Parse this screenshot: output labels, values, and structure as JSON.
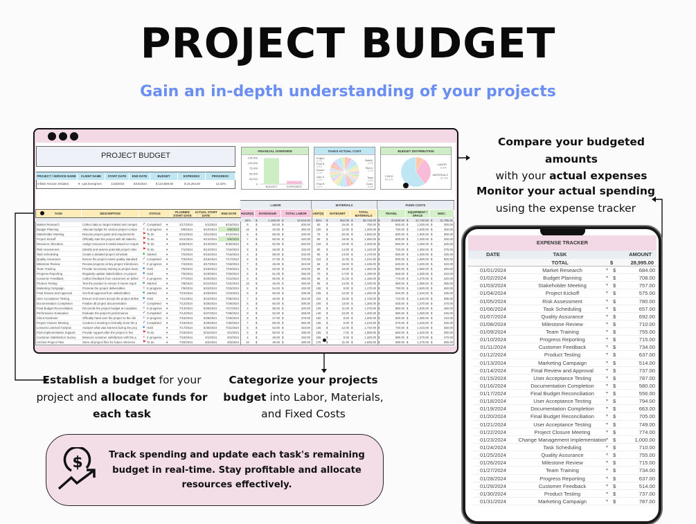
{
  "header": {
    "title": "PROJECT BUDGET",
    "subtitle": "Gain an in-depth understanding of your projects"
  },
  "callouts": {
    "compare": {
      "line1": "Compare your budgeted amounts",
      "line2_pre": "with your ",
      "line2_bold": "actual expenses"
    },
    "monitor": {
      "line1": "Monitor your actual spending",
      "line2": "using the expense tracker"
    },
    "establish": {
      "b1": "Establish a budget",
      "t1": " for your",
      "t2": "project and ",
      "b2": "allocate funds for",
      "b3": "each task"
    },
    "categorize": {
      "b1": "Categorize your projects",
      "b2": "budget",
      "t2": " into Labor, Materials,",
      "t3": "and Fixed Costs"
    },
    "bottom": "Track spending and update each task's remaining budget in real-time. Stay profitable and allocate resources effectively."
  },
  "sheet": {
    "title": "PROJECT BUDGET",
    "info_headers": [
      "PROJECT / SERVICE NAME",
      "CLIENT NAME",
      "START DATE",
      "END DATE",
      "BUDGET",
      "EXPENSES",
      "PROGRESS"
    ],
    "info_values": [
      "Infinite Horizon Initiative",
      "Lyla Evergreen",
      "1/18/2024",
      "5/10/2024",
      "$   123,859.00",
      "$   15,263.00",
      "12.32%"
    ],
    "groups": [
      "LABOR",
      "MATERIALS",
      "FIXED COSTS"
    ],
    "columns": [
      "TASK",
      "DESCRIPTION",
      "STATUS",
      "PLANNED START DATE",
      "ACTUAL START DATE",
      "END DATE",
      "HOUR(S)",
      "RATE/HOUR",
      "TOTAL LABOR",
      "UNIT(S)",
      "RATE/UNIT",
      "TOTAL MATERIALS",
      "TRAVEL",
      "EQUIPMENT / SPACE",
      "MISC."
    ],
    "totals": {
      "hours": "35%",
      "rate": "1,156.00",
      "labor": "10,619.00",
      "units": "35%",
      "mrate": "362.00",
      "materials": "38,745.00",
      "travel": "20,930.00",
      "equipment": "41,740.00",
      "misc": "11,795.00"
    },
    "currency": "$",
    "status_colors": {
      "Completed": "#5b3fc4",
      "In progress": "#e7a3d9",
      "To do": "#e22424",
      "Started": "#2fb34b",
      "Hold": "#2f8fe0"
    },
    "rows": [
      [
        "Market Research",
        "Collect data on target market and compet",
        "Completed",
        "1/17/2024",
        "5/1/2024",
        "5/15/2024",
        "8",
        "50.00",
        "400.00",
        "50",
        "15.00",
        "750.00",
        "500.00",
        "1,200.00",
        "300.00"
      ],
      [
        "Budget Planning",
        "Allocate budget for various project compo",
        "In progress",
        "5/8/2024",
        "5/10/2024",
        "6/8/2024",
        "10",
        "45.00",
        "450.00",
        "100",
        "12.00",
        "1,200.00",
        "750.00",
        "1,500.00",
        "450.00"
      ],
      [
        "Stakeholder Meeting",
        "Discuss project goals and requirements",
        "To do",
        "5/21/2024",
        "5/11/2024",
        "6/10/2024",
        "6",
        "55.00",
        "330.00",
        "75",
        "20.00",
        "1,500.00",
        "600.00",
        "1,300.00",
        "350.00"
      ],
      [
        "Project Kickoff",
        "Officially start the project with all stakeho",
        "To do",
        "6/11/2024",
        "5/12/2024",
        "6/8/2024",
        "7",
        "60.00",
        "420.00",
        "60",
        "18.00",
        "1,080.00",
        "800.00",
        "1,400.00",
        "400.00"
      ],
      [
        "Resource Allocation",
        "Assign resources to tasks based on require",
        "To do",
        "6/26/2024",
        "5/13/2024",
        "6/30/2024",
        "5",
        "52.00",
        "260.00",
        "120",
        "10.00",
        "1,200.00",
        "550.00",
        "1,250.00",
        "325.00"
      ],
      [
        "Risk Assessment",
        "Identify and assess potential project risks",
        "To do",
        "7/1/2024",
        "5/14/2024",
        "7/15/2024",
        "9",
        "48.00",
        "432.00",
        "80",
        "14.00",
        "1,120.00",
        "700.00",
        "1,350.00",
        "375.00"
      ],
      [
        "Task Scheduling",
        "Create a detailed project schedule",
        "Started",
        "7/2/2024",
        "5/15/2024",
        "7/16/2024",
        "4",
        "58.00",
        "232.00",
        "90",
        "13.00",
        "1,170.00",
        "650.00",
        "1,450.00",
        "425.00"
      ],
      [
        "Quality Assurance",
        "Ensure the project meets quality standard",
        "Completed",
        "7/3/2024",
        "5/16/2024",
        "7/17/2024",
        "8",
        "47.00",
        "376.00",
        "110",
        "11.00",
        "1,210.00",
        "900.00",
        "1,600.00",
        "500.00"
      ],
      [
        "Milestone Review",
        "Review progress at key project milestones",
        "In progress",
        "7/4/2024",
        "5/17/2024",
        "7/18/2024",
        "7",
        "49.00",
        "343.00",
        "65",
        "19.00",
        "1,235.00",
        "620.00",
        "1,320.00",
        "340.00"
      ],
      [
        "Team Training",
        "Provide necessary training to project team",
        "Hold",
        "7/5/2024",
        "5/18/2024",
        "7/19/2024",
        "6",
        "53.00",
        "318.00",
        "85",
        "16.00",
        "1,360.00",
        "880.00",
        "1,550.00",
        "460.00"
      ],
      [
        "Progress Reporting",
        "Regularly update stakeholders on project",
        "Hold",
        "7/6/2024",
        "5/19/2024",
        "7/20/2024",
        "5",
        "51.00",
        "255.00",
        "70",
        "17.00",
        "1,190.00",
        "560.00",
        "1,280.00",
        "310.00"
      ],
      [
        "Customer Feedback",
        "Collect feedback from customers on delive",
        "In progress",
        "7/7/2024",
        "5/20/2024",
        "7/21/2024",
        "9",
        "50.00",
        "450.00",
        "55",
        "21.00",
        "1,155.00",
        "770.00",
        "1,470.00",
        "420.00"
      ],
      [
        "Product Testing",
        "Test the product to ensure it meets requir",
        "Started",
        "7/8/2024",
        "5/21/2024",
        "7/22/2024",
        "10",
        "46.00",
        "460.00",
        "95",
        "14.00",
        "1,330.00",
        "680.00",
        "1,380.00",
        "385.00"
      ],
      [
        "Marketing Campaign",
        "Promote the project deliverables",
        "In progress",
        "7/9/2024",
        "5/22/2024",
        "7/23/2024",
        "8",
        "54.00",
        "432.00",
        "130",
        "9.00",
        "1,170.00",
        "790.00",
        "1,500.00",
        "480.00"
      ],
      [
        "Final Review and Approval",
        "Get final approval from stakeholders",
        "Started",
        "7/10/2024",
        "5/23/2024",
        "7/24/2024",
        "6",
        "56.00",
        "336.00",
        "105",
        "12.00",
        "1,260.00",
        "540.00",
        "1,240.00",
        "335.00"
      ],
      [
        "User Acceptance Testing",
        "Ensure end users accept the project delive",
        "Hold",
        "7/11/2024",
        "5/24/2024",
        "7/25/2024",
        "7",
        "45.00",
        "315.00",
        "115",
        "15.00",
        "1,725.00",
        "710.00",
        "1,420.00",
        "395.00"
      ],
      [
        "Documentation Completion",
        "Finalize all project documentation",
        "Completed",
        "7/12/2024",
        "5/25/2024",
        "7/26/2024",
        "5",
        "60.00",
        "300.00",
        "100",
        "13.00",
        "1,300.00",
        "630.00",
        "1,370.00",
        "370.00"
      ],
      [
        "Final Budget Reconciliation",
        "Reconcile the project budget at completio",
        "In progress",
        "7/13/2024",
        "5/26/2024",
        "7/27/2024",
        "4",
        "55.00",
        "220.00",
        "125",
        "11.00",
        "1,375.00",
        "860.00",
        "1,530.00",
        "460.00"
      ],
      [
        "Performance Evaluation",
        "Evaluate the project's performance",
        "Completed",
        "7/14/2024",
        "5/27/2024",
        "7/28/2024",
        "9",
        "52.00",
        "468.00",
        "140",
        "10.00",
        "1,400.00",
        "580.00",
        "1,260.00",
        "345.00"
      ],
      [
        "Client Handover",
        "Officially hand over the project to the clie",
        "In progress",
        "7/15/2024",
        "5/28/2024",
        "7/29/2024",
        "8",
        "47.00",
        "376.00",
        "150",
        "8.00",
        "1,200.00",
        "830.00",
        "1,480.00",
        "410.00"
      ],
      [
        "Project Closure Meeting",
        "Conduct a meeting to formally close the p",
        "Completed",
        "7/16/2024",
        "5/29/2024",
        "7/30/2024",
        "7",
        "50.00",
        "350.00",
        "135",
        "9.00",
        "1,215.00",
        "570.00",
        "1,220.00",
        "330.00"
      ],
      [
        "Lessons Learned Analysis",
        "Analyze what was learned during the proj",
        "Hold",
        "7/17/2024",
        "5/30/2024",
        "7/31/2024",
        "6",
        "53.00",
        "318.00",
        "145",
        "12.00",
        "1,740.00",
        "740.00",
        "1,410.00",
        "360.00"
      ],
      [
        "Post-Implementation Support",
        "Provide support after the project is live",
        "To do",
        "7/18/2024",
        "5/31/2024",
        "8/1/2024",
        "5",
        "58.00",
        "290.00",
        "155",
        "7.00",
        "1,085.00",
        "660.00",
        "1,340.00",
        "390.00"
      ],
      [
        "Customer Satisfaction Survey",
        "Measure customer satisfaction with the p",
        "In progress",
        "7/19/2024",
        "6/1/2024",
        "8/2/2024",
        "4",
        "48.00",
        "192.00",
        "165",
        "8.00",
        "1,320.00",
        "880.00",
        "1,370.00",
        "470.00"
      ],
      [
        "Archive Project Files",
        "Store all project files for future reference",
        "To do",
        "7/20/2024",
        "6/2/2024",
        "8/3/2024",
        "10",
        "49.00",
        "490.00",
        "175",
        "11.00",
        "1,925.00",
        "590.00",
        "1,270.00",
        "355.00"
      ]
    ]
  },
  "chart_data": [
    {
      "type": "bar",
      "title": "FINANCIAL OVERVIEW",
      "categories": [
        "BUDGET",
        "EXPENSES"
      ],
      "values": [
        123859,
        15263
      ],
      "yticks": [
        "125,000",
        "100,000",
        "75,000",
        "50,000",
        "25,000",
        "0"
      ],
      "ylim": [
        0,
        125000
      ],
      "colors": [
        "#cdeec4",
        "#f6bfd9"
      ],
      "header_color": "#cfeec6"
    },
    {
      "type": "pie",
      "title": "TASKS ACTUAL COST",
      "header_color": "#bfe6f3",
      "labels": [
        "Stakeh.",
        "Risk A.",
        "Team",
        "Custo.",
        "Final R.",
        "User A.",
        "Docum.",
        "Final B.",
        "Project"
      ],
      "values": [
        4.2,
        3.7,
        4.2,
        4.0,
        4.0,
        3.7,
        3.7,
        3.9,
        3.7
      ],
      "value_labels": [
        "4.2%",
        "3.7%",
        "4.2%",
        "4.0%",
        "4.0%",
        "3.7%",
        "3.7%",
        "3.9%",
        "3.7%"
      ]
    },
    {
      "type": "pie",
      "title": "BUDGET DISTRIBUTION",
      "header_color": "#cfeec6",
      "labels": [
        "LABOR",
        "MATERIALS",
        "FIXED"
      ],
      "values": [
        8.6,
        31.3,
        60.1
      ],
      "value_labels": [
        "8.6%",
        "31.3%",
        "60.1%"
      ],
      "colors": [
        "#fbc8a8",
        "#f8bcd9",
        "#bfe6f3"
      ]
    }
  ],
  "expense_tracker": {
    "title": "EXPENSE TRACKER",
    "headers": [
      "DATE",
      "TASK",
      "AMOUNT"
    ],
    "total_label": "TOTAL",
    "currency": "$",
    "total": "28,995.00",
    "rows": [
      [
        "01/01/2024",
        "Market Research",
        "684.00"
      ],
      [
        "01/02/2024",
        "Budget Planning",
        "708.00"
      ],
      [
        "01/03/2024",
        "Stakeholder Meeting",
        "757.00"
      ],
      [
        "01/04/2024",
        "Project Kickoff",
        "575.00"
      ],
      [
        "01/05/2024",
        "Risk Assessment",
        "780.00"
      ],
      [
        "01/06/2024",
        "Task Scheduling",
        "657.00"
      ],
      [
        "01/07/2024",
        "Quality Assurance",
        "692.00"
      ],
      [
        "01/08/2024",
        "Milestone Review",
        "710.00"
      ],
      [
        "01/09/2024",
        "Team Training",
        "755.00"
      ],
      [
        "01/10/2024",
        "Progress Reporting",
        "715.00"
      ],
      [
        "01/11/2024",
        "Customer Feedback",
        "734.00"
      ],
      [
        "01/12/2024",
        "Product Testing",
        "637.00"
      ],
      [
        "01/13/2024",
        "Marketing Campaign",
        "514.00"
      ],
      [
        "01/14/2024",
        "Final Review and Approval",
        "737.00"
      ],
      [
        "01/15/2024",
        "User Acceptance Testing",
        "787.00"
      ],
      [
        "01/16/2024",
        "Documentation Completion",
        "580.00"
      ],
      [
        "01/17/2024",
        "Final Budget Reconciliation",
        "556.00"
      ],
      [
        "01/18/2024",
        "User Acceptance Testing",
        "794.00"
      ],
      [
        "01/19/2024",
        "Documentation Completion",
        "663.00"
      ],
      [
        "01/20/2024",
        "Final Budget Reconciliation",
        "705.00"
      ],
      [
        "01/21/2024",
        "User Acceptance Testing",
        "749.00"
      ],
      [
        "01/22/2024",
        "Project Closure Meeting",
        "774.00"
      ],
      [
        "01/23/2024",
        "Change Management Implementation",
        "1,000.00"
      ],
      [
        "01/24/2024",
        "Task Scheduling",
        "710.00"
      ],
      [
        "01/25/2024",
        "Quality Assurance",
        "755.00"
      ],
      [
        "01/26/2024",
        "Milestone Review",
        "715.00"
      ],
      [
        "01/27/2024",
        "Team Training",
        "734.00"
      ],
      [
        "01/28/2024",
        "Progress Reporting",
        "637.00"
      ],
      [
        "01/29/2024",
        "Customer Feedback",
        "514.00"
      ],
      [
        "01/30/2024",
        "Product Testing",
        "737.00"
      ],
      [
        "01/31/2024",
        "Marketing Campaign",
        "787.00"
      ]
    ]
  },
  "colors": {
    "subtitle": "#6b8ef2",
    "frame_pink": "#f3d9e5",
    "task_header": "#fdebb8",
    "labor_header": "#f8c6dc",
    "materials_header": "#fdebb8",
    "fixed_header": "#d4f0c9",
    "info_header": "#bfe6f3",
    "group_header": "#e9eef4"
  }
}
